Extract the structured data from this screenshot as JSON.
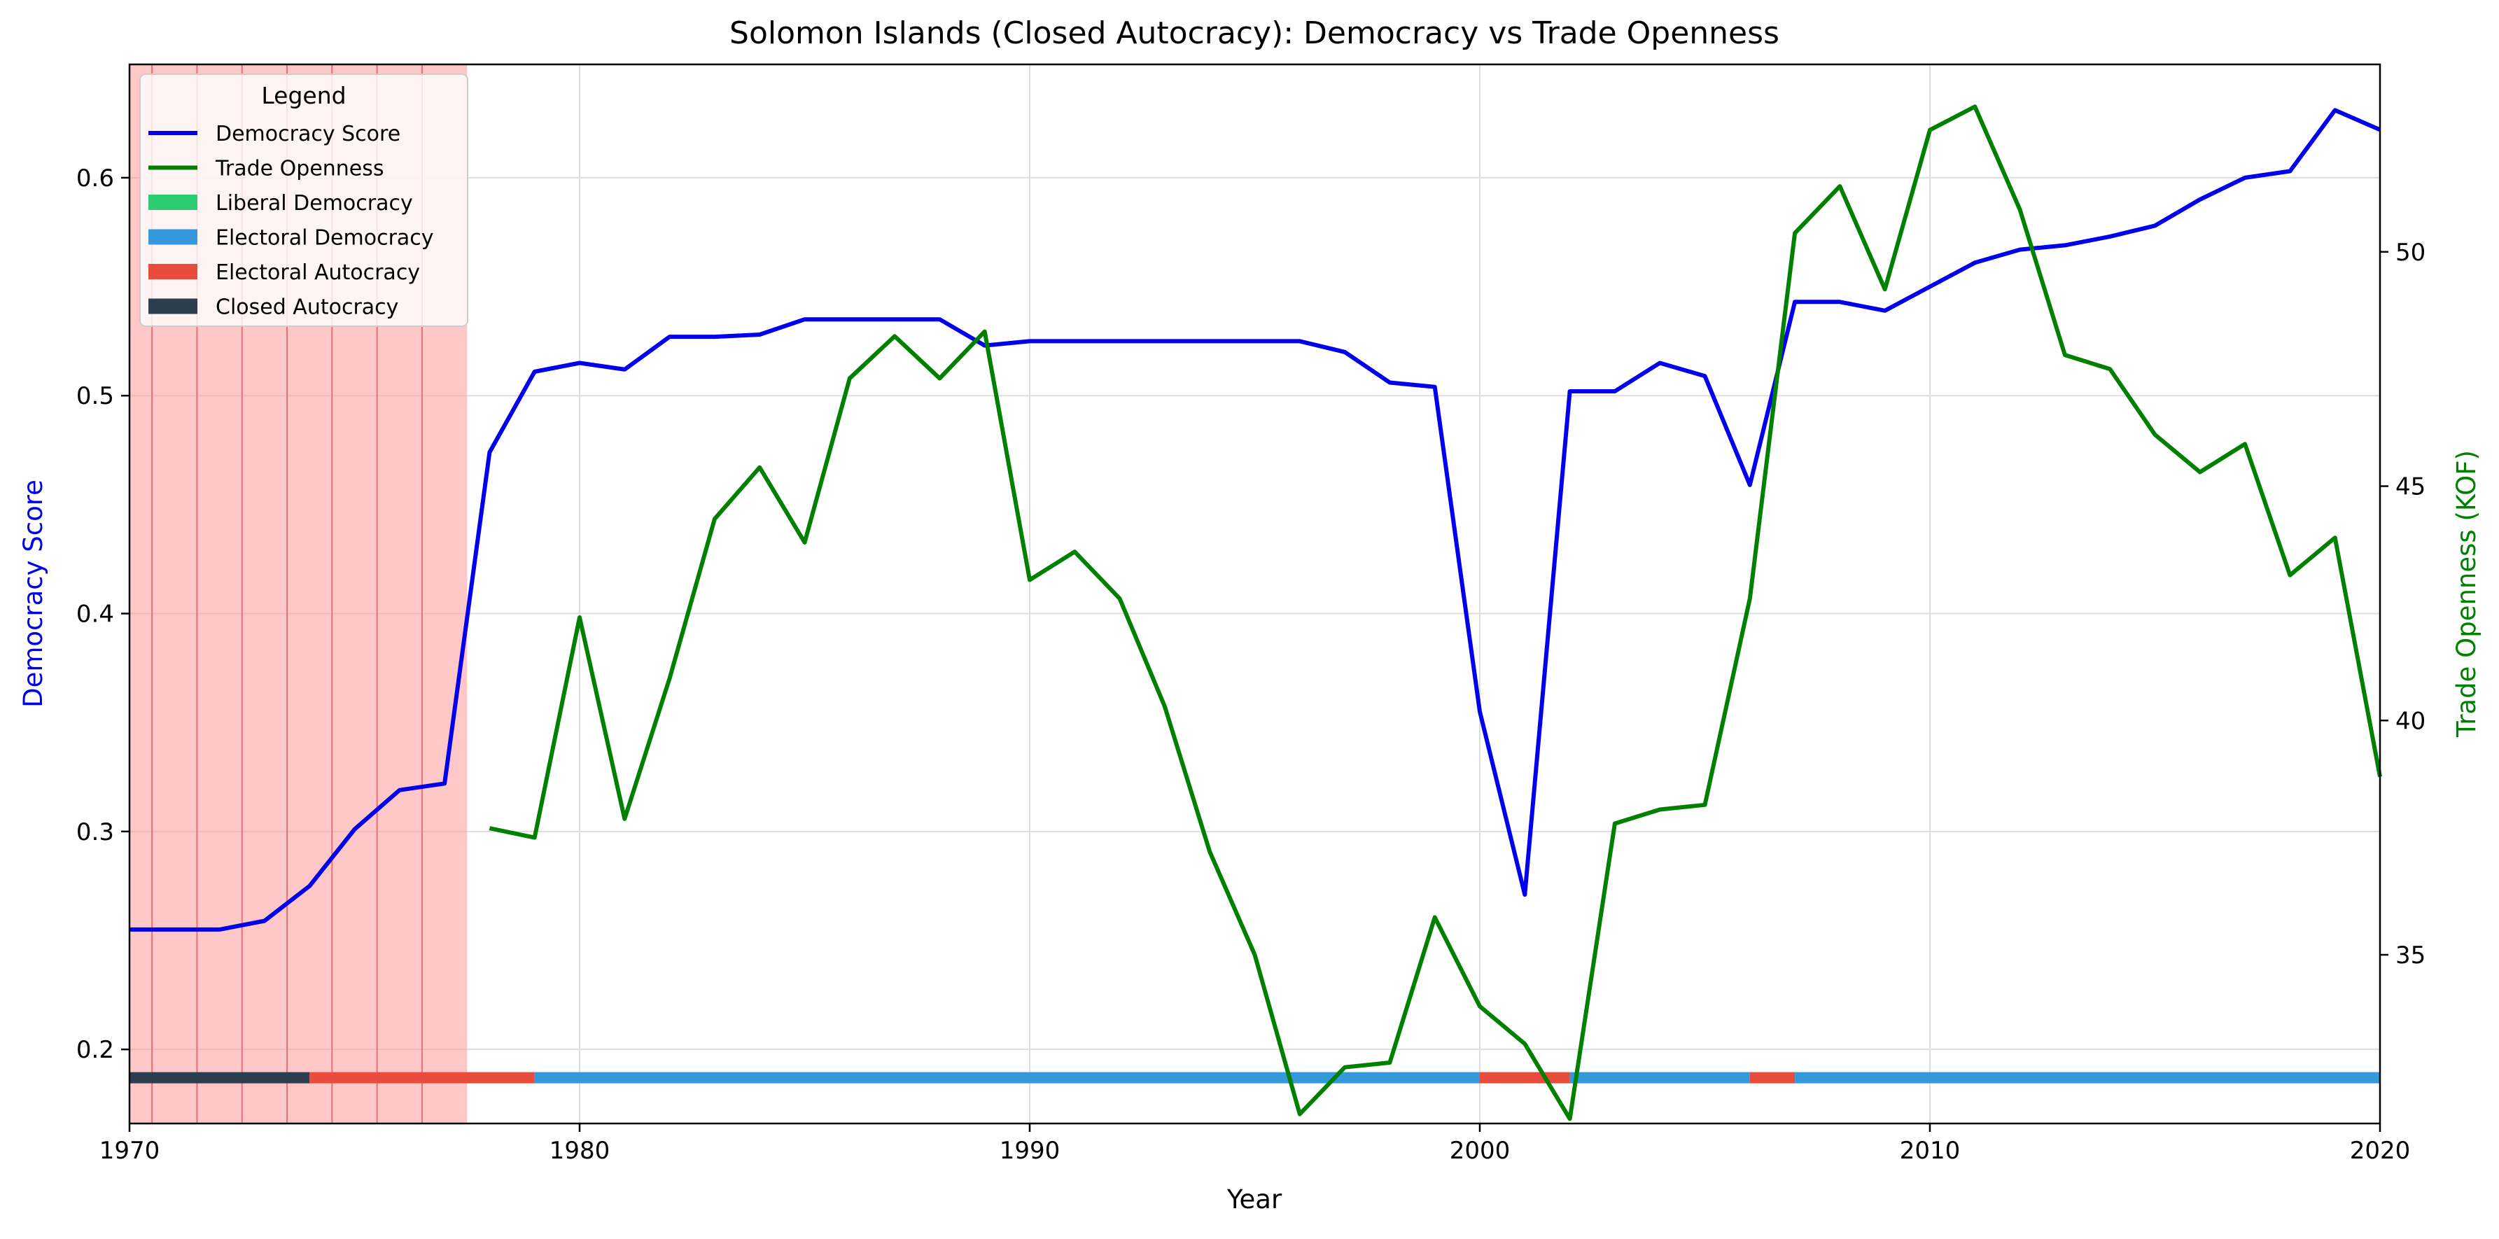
{
  "chart_data": {
    "type": "line",
    "title": "Solomon Islands (Closed Autocracy): Democracy vs Trade Openness",
    "xlabel": "Year",
    "ylabel_left": "Democracy Score",
    "ylabel_right": "Trade Openness (KOF)",
    "xlim": [
      1970,
      2020
    ],
    "ylim_left": [
      0.166,
      0.652
    ],
    "ylim_right": [
      31.4,
      54.0
    ],
    "x_ticks": [
      "1970",
      "1980",
      "1990",
      "2000",
      "2010",
      "2020"
    ],
    "y_ticks_left": [
      "0.2",
      "0.3",
      "0.4",
      "0.5",
      "0.6"
    ],
    "y_ticks_right": [
      "35",
      "40",
      "45",
      "50"
    ],
    "grid": true,
    "colors": {
      "democracy": "#0000ee",
      "trade": "#008000",
      "liberal_democracy": "#2ecc71",
      "electoral_democracy": "#3498db",
      "electoral_autocracy": "#e74c3c",
      "closed_autocracy": "#2c3e50",
      "shade": "#ff9a9a",
      "shade_edge": "#e87070"
    },
    "legend": {
      "title": "Legend",
      "position": "upper-left",
      "entries": [
        {
          "label": "Democracy Score",
          "kind": "line",
          "color": "#0000ee"
        },
        {
          "label": "Trade Openness",
          "kind": "line",
          "color": "#008000"
        },
        {
          "label": "Liberal Democracy",
          "kind": "patch",
          "color": "#2ecc71"
        },
        {
          "label": "Electoral Democracy",
          "kind": "patch",
          "color": "#3498db"
        },
        {
          "label": "Electoral Autocracy",
          "kind": "patch",
          "color": "#e74c3c"
        },
        {
          "label": "Closed Autocracy",
          "kind": "patch",
          "color": "#2c3e50"
        }
      ]
    },
    "shaded_period": {
      "start": 1970,
      "end": 1977.5,
      "dividers": [
        1970.5,
        1971.5,
        1972.5,
        1973.5,
        1974.5,
        1975.5,
        1976.5
      ]
    },
    "series": [
      {
        "name": "Democracy Score",
        "axis": "left",
        "x": [
          1970,
          1971,
          1972,
          1973,
          1974,
          1975,
          1976,
          1977,
          1978,
          1979,
          1980,
          1981,
          1982,
          1983,
          1984,
          1985,
          1986,
          1987,
          1988,
          1989,
          1990,
          1991,
          1992,
          1993,
          1994,
          1995,
          1996,
          1997,
          1998,
          1999,
          2000,
          2001,
          2002,
          2003,
          2004,
          2005,
          2006,
          2007,
          2008,
          2009,
          2010,
          2011,
          2012,
          2013,
          2014,
          2015,
          2016,
          2017,
          2018,
          2019,
          2020
        ],
        "y": [
          0.255,
          0.255,
          0.255,
          0.259,
          0.275,
          0.301,
          0.319,
          0.322,
          0.474,
          0.511,
          0.515,
          0.512,
          0.527,
          0.527,
          0.528,
          0.535,
          0.535,
          0.535,
          0.535,
          0.523,
          0.525,
          0.525,
          0.525,
          0.525,
          0.525,
          0.525,
          0.525,
          0.52,
          0.506,
          0.504,
          0.355,
          0.271,
          0.502,
          0.502,
          0.515,
          0.509,
          0.459,
          0.543,
          0.543,
          0.539,
          0.55,
          0.561,
          0.567,
          0.569,
          0.573,
          0.578,
          0.59,
          0.6,
          0.603,
          0.631,
          0.622
        ]
      },
      {
        "name": "Trade Openness",
        "axis": "right",
        "x": [
          1978,
          1979,
          1980,
          1981,
          1982,
          1983,
          1984,
          1985,
          1986,
          1987,
          1988,
          1989,
          1990,
          1991,
          1992,
          1993,
          1994,
          1995,
          1996,
          1997,
          1998,
          1999,
          2000,
          2001,
          2002,
          2003,
          2004,
          2005,
          2006,
          2007,
          2008,
          2009,
          2010,
          2011,
          2012,
          2013,
          2014,
          2015,
          2016,
          2017,
          2018,
          2019,
          2020
        ],
        "y": [
          37.7,
          37.5,
          42.2,
          37.9,
          40.9,
          44.3,
          45.4,
          43.8,
          47.3,
          48.2,
          47.3,
          48.3,
          43.0,
          43.6,
          42.6,
          40.3,
          37.2,
          35.0,
          31.6,
          32.6,
          32.7,
          35.8,
          33.9,
          33.1,
          31.5,
          37.8,
          38.1,
          38.2,
          42.6,
          50.4,
          51.4,
          49.2,
          52.6,
          53.1,
          50.9,
          47.8,
          47.5,
          46.1,
          45.3,
          45.9,
          43.1,
          43.9,
          38.8
        ]
      }
    ],
    "regime_bar": [
      {
        "regime": "Closed Autocracy",
        "start": 1970,
        "end": 1974
      },
      {
        "regime": "Electoral Autocracy",
        "start": 1974,
        "end": 1979
      },
      {
        "regime": "Electoral Democracy",
        "start": 1979,
        "end": 2000
      },
      {
        "regime": "Electoral Autocracy",
        "start": 2000,
        "end": 2002
      },
      {
        "regime": "Electoral Democracy",
        "start": 2002,
        "end": 2006
      },
      {
        "regime": "Electoral Autocracy",
        "start": 2006,
        "end": 2007
      },
      {
        "regime": "Electoral Democracy",
        "start": 2007,
        "end": 2020
      }
    ]
  }
}
